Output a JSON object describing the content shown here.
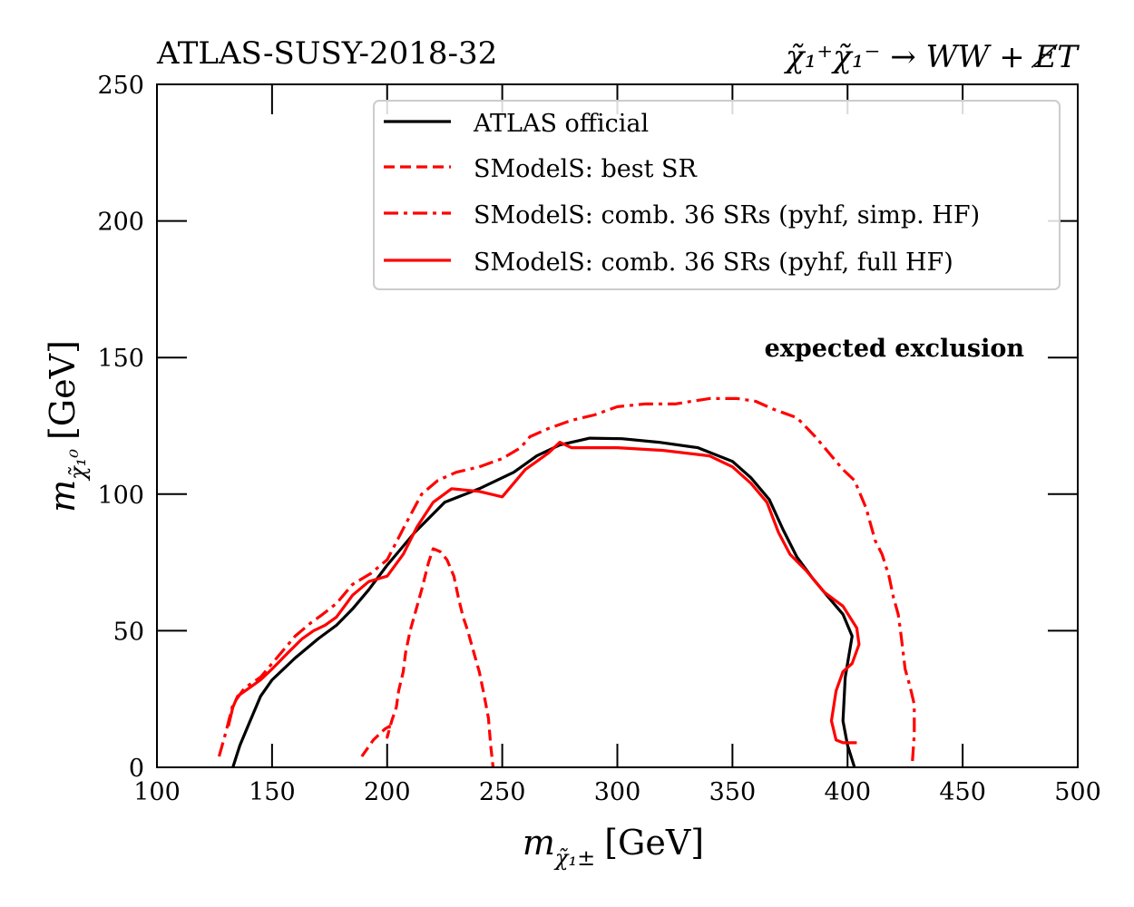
{
  "chart_data": {
    "type": "line",
    "title_left": "ATLAS-SUSY-2018-32",
    "title_right": "χ̃₁⁺χ̃₁⁻ → WW + E̸T",
    "xlabel": "m_χ̃₁± [GeV]",
    "xlabel_main": "m",
    "xlabel_sub": "χ̃₁±",
    "xlabel_unit": "[GeV]",
    "ylabel": "m_χ̃₁⁰ [GeV]",
    "ylabel_main": "m",
    "ylabel_sub": "χ̃₁⁰",
    "ylabel_unit": "[GeV]",
    "xlim": [
      100,
      500
    ],
    "ylim": [
      0,
      250
    ],
    "xticks": [
      "100",
      "150",
      "200",
      "250",
      "300",
      "350",
      "400",
      "450",
      "500"
    ],
    "yticks": [
      "0",
      "50",
      "100",
      "150",
      "200",
      "250"
    ],
    "annotation": "expected exclusion",
    "legend_position": "top-right",
    "series": [
      {
        "name": "ATLAS official",
        "color": "#000000",
        "style": "solid",
        "x": [
          133,
          136,
          140,
          145,
          150,
          160,
          170,
          178,
          185,
          192,
          200,
          212,
          225,
          240,
          255,
          265,
          275,
          288,
          302,
          318,
          335,
          350,
          358,
          366,
          372,
          378,
          385,
          392,
          398,
          402,
          399,
          398,
          400,
          403
        ],
        "y": [
          0,
          8,
          16,
          26,
          32,
          40,
          47,
          52,
          58,
          65,
          74,
          86,
          97,
          102,
          108,
          114,
          118,
          120.5,
          120.3,
          119,
          117,
          112,
          106,
          98,
          87,
          77,
          69,
          62,
          56,
          48,
          33,
          17,
          8,
          0
        ]
      },
      {
        "name": "SModelS: best SR",
        "color": "#ff0000",
        "style": "dashed",
        "x": [
          189,
          194,
          199,
          201,
          200,
          202,
          204,
          205,
          207,
          208,
          210,
          212,
          215,
          218,
          220,
          223,
          226,
          229,
          231,
          233,
          235,
          237,
          240,
          242,
          244,
          245,
          246
        ],
        "y": [
          4,
          10,
          14,
          15,
          11,
          17,
          22,
          28,
          35,
          42,
          50,
          56,
          65,
          75,
          80,
          79,
          76,
          70,
          62,
          55,
          50,
          44,
          35,
          27,
          18,
          8,
          0
        ]
      },
      {
        "name": "SModelS: comb. 36 SRs (pyhf, simp. HF)",
        "color": "#ff0000",
        "style": "dashdot",
        "x": [
          127,
          130,
          133,
          138,
          145,
          152,
          160,
          167,
          172,
          178,
          185,
          193,
          200,
          208,
          215,
          222,
          230,
          240,
          250,
          258,
          262,
          270,
          280,
          290,
          300,
          312,
          325,
          340,
          352,
          360,
          368,
          378,
          386,
          393,
          398,
          403,
          408,
          412,
          415,
          418,
          420,
          422,
          423,
          424,
          425,
          427,
          429,
          429,
          428
        ],
        "y": [
          4,
          13,
          23,
          29,
          33,
          40,
          48,
          53,
          56,
          60,
          67,
          71,
          76,
          89,
          100,
          105,
          108,
          110,
          113,
          117,
          121,
          124,
          127,
          129,
          132,
          133,
          133,
          135,
          135,
          134,
          131,
          128,
          121,
          114,
          109,
          105,
          95,
          83,
          78,
          70,
          62,
          56,
          50,
          43,
          36,
          30,
          23,
          12,
          0
        ]
      },
      {
        "name": "SModelS: comb. 36 SRs (pyhf, full HF)",
        "color": "#ff0000",
        "style": "solid",
        "x": [
          131,
          133,
          135,
          140,
          145,
          150,
          157,
          163,
          168,
          173,
          178,
          185,
          192,
          200,
          207,
          213,
          220,
          228,
          240,
          250,
          255,
          260,
          265,
          270,
          275,
          280,
          300,
          320,
          340,
          350,
          358,
          365,
          370,
          375,
          382,
          390,
          398,
          404,
          405,
          402,
          398,
          395,
          393,
          395,
          398,
          404
        ],
        "y": [
          15,
          22,
          26,
          29,
          32,
          36,
          42,
          47,
          50,
          52,
          55,
          63,
          68,
          70,
          78,
          88,
          97,
          102,
          101,
          99,
          104,
          109,
          112,
          115,
          119,
          117,
          117,
          116,
          114,
          110,
          104,
          97,
          86,
          78,
          72,
          64,
          59,
          51,
          45,
          38,
          35,
          28,
          17,
          10,
          9,
          9
        ]
      }
    ]
  }
}
